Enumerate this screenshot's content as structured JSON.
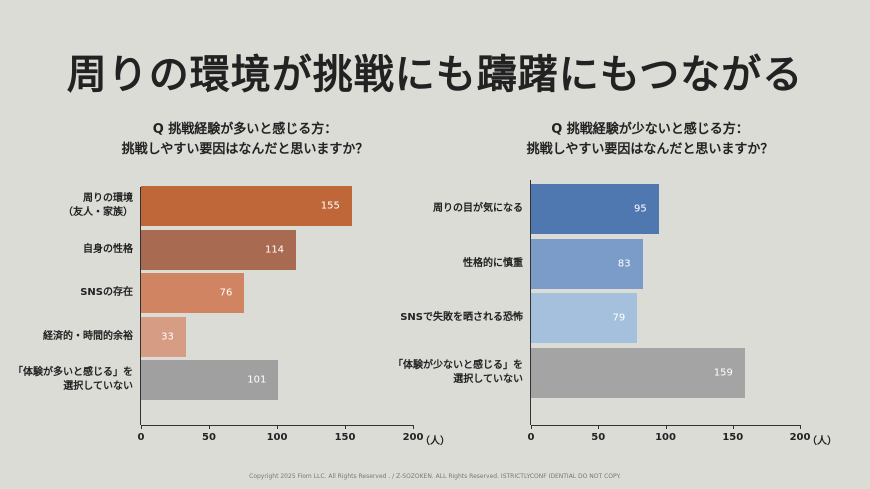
{
  "title": "周りの環境が挑戦にも躊躇にもつながる",
  "footer": "Copyright 2025 Fiom LLC. All Rights Reserved . / Z-SOZOKEN. ALL Rights Reserved. ISTRICTLYCONF IDENTIAL DO NOT COPY.",
  "chart_data": [
    {
      "type": "bar",
      "orientation": "horizontal",
      "title": "Q 挑戦経験が多いと感じる方：\n挑戦しやすい要因はなんだと思いますか？",
      "categories": [
        "周りの環境\n（友人・家族）",
        "自身の性格",
        "SNSの存在",
        "経済的・時間的余裕",
        "「体験が多いと感じる」を\n選択していない"
      ],
      "values": [
        155,
        114,
        76,
        33,
        101
      ],
      "colors": [
        "#c0673a",
        "#a96a52",
        "#d08462",
        "#d79c84",
        "#a0a0a0"
      ],
      "xlim": [
        0,
        200
      ],
      "xticks": [
        0,
        50,
        100,
        150,
        200
      ],
      "x_unit": "（人）"
    },
    {
      "type": "bar",
      "orientation": "horizontal",
      "title": "Q 挑戦経験が少ないと感じる方：\n挑戦しやすい要因はなんだと思いますか？",
      "categories": [
        "周りの目が気になる",
        "性格的に慎重",
        "SNSで失敗を晒される恐怖",
        "「体験が少ないと感じる」を\n選択していない"
      ],
      "values": [
        95,
        83,
        79,
        159
      ],
      "colors": [
        "#4f78b0",
        "#7b9cc8",
        "#a4c0dd",
        "#a4a4a4"
      ],
      "xlim": [
        0,
        200
      ],
      "xticks": [
        0,
        50,
        100,
        150,
        200
      ],
      "x_unit": "（人）"
    }
  ]
}
